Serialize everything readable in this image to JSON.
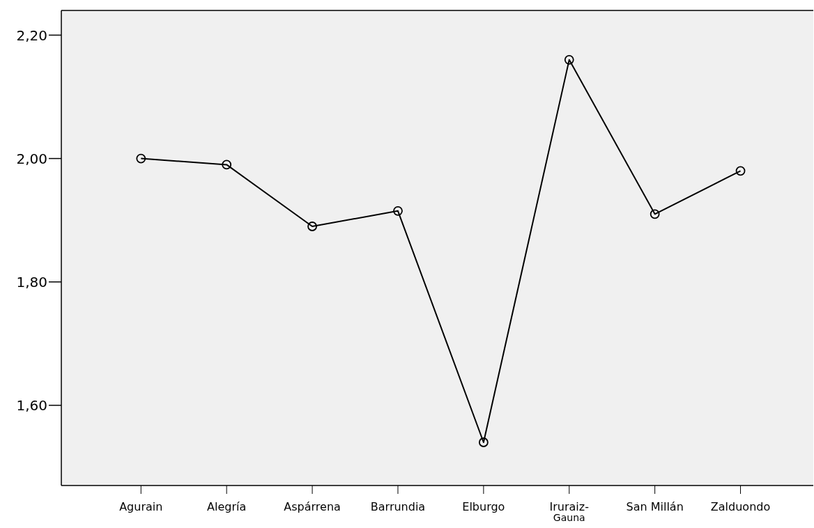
{
  "chart_data": {
    "type": "line",
    "categories": [
      "Agurain",
      "Alegría",
      "Aspárrena",
      "Barrundia",
      "Elburgo",
      "Iruraiz-Gauna",
      "San Millán",
      "Zalduondo"
    ],
    "series": [
      {
        "color": "#000000",
        "values": [
          2.0,
          1.99,
          1.89,
          1.915,
          1.54,
          2.16,
          1.91,
          1.98
        ]
      }
    ],
    "ylim": [
      1.47,
      2.24
    ],
    "yticks": [
      {
        "value": 1.6,
        "label": "1,60"
      },
      {
        "value": 1.8,
        "label": "1,80"
      },
      {
        "value": 2.0,
        "label": "2,00"
      },
      {
        "value": 2.2,
        "label": "2,20"
      }
    ],
    "marker": "circle",
    "line_style": "solid"
  }
}
